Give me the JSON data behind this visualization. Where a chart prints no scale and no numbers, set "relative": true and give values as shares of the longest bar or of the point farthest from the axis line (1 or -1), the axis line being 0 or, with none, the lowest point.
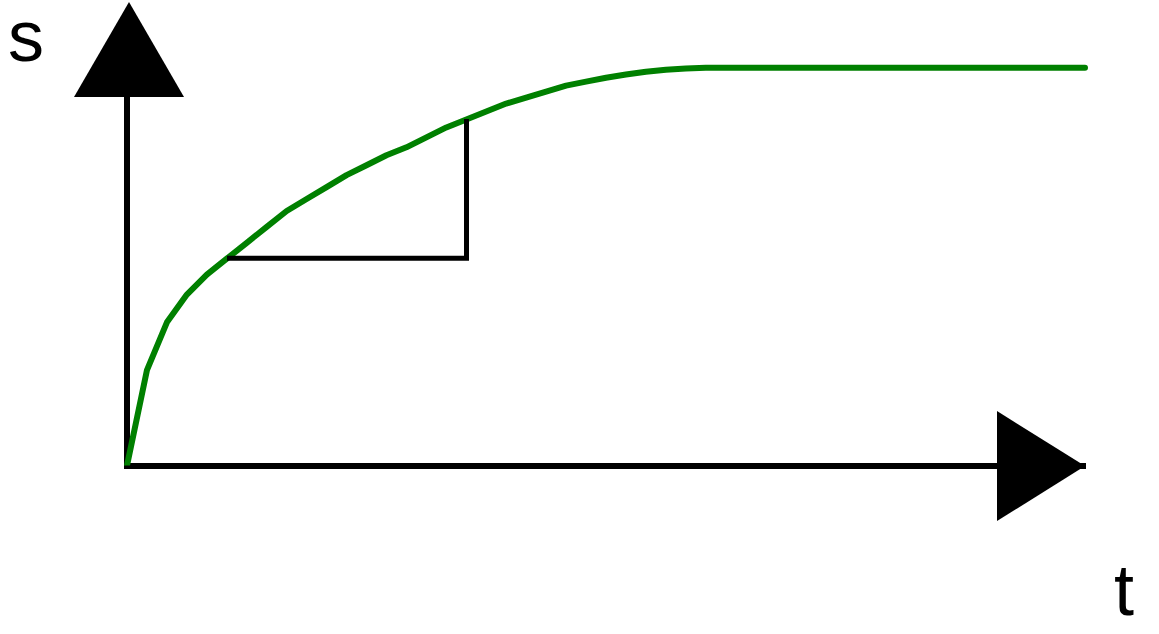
{
  "chart_data": {
    "type": "line",
    "xlabel": "t",
    "ylabel": "s",
    "relative": true,
    "marker": "none",
    "grid": false,
    "legend": false,
    "categories": [
      null,
      null,
      null,
      null,
      null,
      null,
      null,
      null,
      null,
      null,
      null,
      null,
      null,
      null,
      null,
      null,
      null,
      null,
      null,
      null,
      null,
      null,
      null,
      null,
      null,
      null,
      null,
      null,
      null,
      null,
      null,
      null,
      null,
      null,
      null,
      null,
      null,
      null,
      null,
      null,
      null,
      null,
      null,
      null,
      null,
      null,
      null,
      null,
      null
    ],
    "series": [
      {
        "color": "#008000",
        "values": [
          0,
          0.24,
          0.36,
          0.43,
          0.48,
          0.52,
          0.56,
          0.6,
          0.64,
          0.67,
          0.7,
          0.73,
          0.755,
          0.78,
          0.8,
          0.825,
          0.85,
          0.87,
          0.89,
          0.91,
          0.925,
          0.94,
          0.955,
          0.965,
          0.975,
          0.983,
          0.99,
          0.995,
          0.998,
          1,
          1,
          1,
          1,
          1,
          1,
          1,
          1,
          1,
          1,
          1,
          1,
          1,
          1,
          1,
          1,
          1,
          1,
          1,
          1
        ]
      }
    ]
  }
}
